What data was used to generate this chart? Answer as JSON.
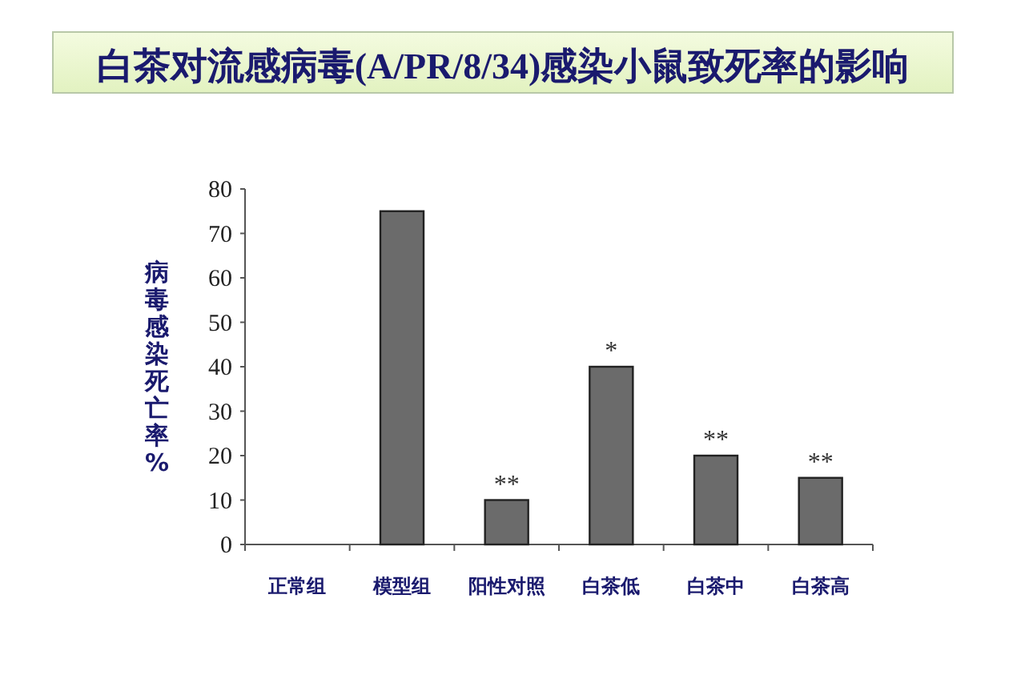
{
  "chart_data": {
    "type": "bar",
    "title": "白茶对流感病毒(A/PR/8/34)感染小鼠致死率的影响",
    "ylabel": "病毒感染死亡率%",
    "categories": [
      "正常组",
      "模型组",
      "阳性对照",
      "白茶低",
      "白茶中",
      "白茶高"
    ],
    "values": [
      0,
      75,
      10,
      40,
      20,
      15
    ],
    "color": "#6b6b6b",
    "ylim": [
      0,
      80
    ],
    "yticks": [
      0,
      10,
      20,
      30,
      40,
      50,
      60,
      70,
      80
    ],
    "grid": false,
    "annotations": [
      {
        "text": "**",
        "x": "阳性对照",
        "y": 10
      },
      {
        "text": "*",
        "x": "白茶低",
        "y": 40
      },
      {
        "text": "**",
        "x": "白茶中",
        "y": 20
      },
      {
        "text": "**",
        "x": "白茶高",
        "y": 15
      }
    ]
  }
}
